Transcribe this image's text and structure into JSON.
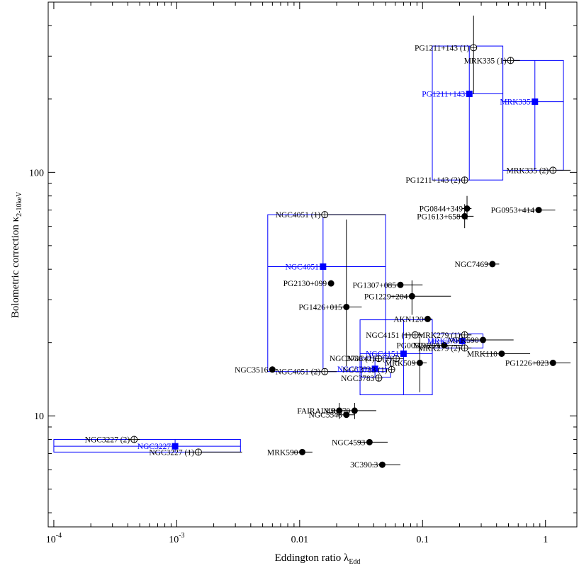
{
  "chart_data": {
    "type": "scatter",
    "xlabel": "Eddington ratio λ",
    "xlabel_sub": "Edd",
    "ylabel": "Bolometric correction κ",
    "ylabel_sub": "2-10keV",
    "x_scale": "log",
    "y_scale": "log",
    "xlim": [
      9e-05,
      1.8
    ],
    "ylim": [
      3.5,
      500
    ],
    "grid": false,
    "x_ticks": [
      {
        "value": 0.0001,
        "base": "10",
        "exp": "-4"
      },
      {
        "value": 0.001,
        "base": "10",
        "exp": "-3"
      },
      {
        "value": 0.01,
        "text": "0.01"
      },
      {
        "value": 0.1,
        "text": "0.1"
      },
      {
        "value": 1,
        "text": "1"
      }
    ],
    "y_ticks": [
      {
        "value": 10,
        "text": "10"
      },
      {
        "value": 100,
        "text": "100"
      }
    ],
    "series": [
      {
        "marker": "filled-circle",
        "points": [
          {
            "label": "PG0844+349",
            "x": 0.23,
            "y": 71,
            "xerr": [
              0.21,
              0.25
            ],
            "yerr": [
              64,
              80
            ]
          },
          {
            "label": "PG0953+414",
            "x": 0.88,
            "y": 70,
            "xerr": [
              0.6,
              1.2
            ]
          },
          {
            "label": "PG1613+658",
            "x": 0.22,
            "y": 66,
            "xerr": [
              0.19,
              0.26
            ],
            "yerr": [
              59,
              74
            ]
          },
          {
            "label": "NGC7469",
            "x": 0.37,
            "y": 42,
            "xerr": [
              0.33,
              0.42
            ]
          },
          {
            "label": "PG2130+099",
            "x": 0.018,
            "y": 35
          },
          {
            "label": "PG1307+085",
            "x": 0.066,
            "y": 34.5,
            "xerr": [
              0.05,
              0.1
            ]
          },
          {
            "label": "PG1229+204",
            "x": 0.082,
            "y": 31,
            "xerr": [
              0.055,
              0.17
            ],
            "yerr": [
              26,
              36
            ]
          },
          {
            "label": "PG1426+015",
            "x": 0.024,
            "y": 28,
            "xerr": [
              0.018,
              0.032
            ],
            "yerr": [
              16,
              64
            ]
          },
          {
            "label": "AKN120",
            "x": 0.11,
            "y": 25,
            "xerr": [
              0.1,
              0.12
            ]
          },
          {
            "label": "MRK79",
            "x": 0.15,
            "y": 19.5,
            "xerr": [
              0.12,
              0.19
            ]
          },
          {
            "label": "PG0052+251",
            "x": 0.15,
            "y": 19.5,
            "xerr": [
              0.11,
              0.21
            ]
          },
          {
            "label": "MRK590",
            "x": 0.31,
            "y": 20.5,
            "xerr": [
              0.2,
              0.55
            ]
          },
          {
            "label": "MRK110",
            "x": 0.44,
            "y": 18,
            "xerr": [
              0.3,
              0.75
            ]
          },
          {
            "label": "PG1226+023",
            "x": 1.15,
            "y": 16.5,
            "xerr": [
              0.8,
              1.6
            ]
          },
          {
            "label": "MRK509",
            "x": 0.095,
            "y": 16.5,
            "xerr": [
              0.082,
              0.108
            ],
            "yerr": [
              12.5,
              21
            ]
          },
          {
            "label": "NGC3516",
            "x": 0.006,
            "y": 15.5
          },
          {
            "label": "FAIRALL9",
            "x": 0.021,
            "y": 10.5,
            "xerr": [
              0.018,
              0.024
            ],
            "yerr": [
              9.7,
              11.3
            ]
          },
          {
            "label": "NGC5548",
            "x": 0.024,
            "y": 10.1,
            "xerr": [
              0.02,
              0.028
            ]
          },
          {
            "label": "MRK79",
            "x": 0.028,
            "y": 10.5,
            "xerr": [
              0.022,
              0.042
            ],
            "yerr": [
              9.7,
              11.3
            ]
          },
          {
            "label": "NGC4593",
            "x": 0.037,
            "y": 7.8,
            "xerr": [
              0.03,
              0.052
            ]
          },
          {
            "label": "MRK590",
            "x": 0.0105,
            "y": 7.1,
            "xerr": [
              0.0087,
              0.0127
            ]
          },
          {
            "label": "3C390.3",
            "x": 0.047,
            "y": 6.3,
            "xerr": [
              0.038,
              0.066
            ]
          }
        ]
      },
      {
        "marker": "open-circle",
        "points": [
          {
            "label": "PG1211+143 (1)",
            "x": 0.26,
            "y": 325,
            "yerr": [
              210,
              440
            ]
          },
          {
            "label": "MRK335 (1)",
            "x": 0.52,
            "y": 288,
            "xerr": [
              0.45,
              0.62
            ]
          },
          {
            "label": "PG1211+143 (2)",
            "x": 0.22,
            "y": 93
          },
          {
            "label": "MRK335 (2)",
            "x": 1.15,
            "y": 102,
            "xerr": [
              0.9,
              1.6
            ]
          },
          {
            "label": "NGC4051 (1)",
            "x": 0.016,
            "y": 67,
            "xerr": [
              0.013,
              0.05
            ]
          },
          {
            "label": "NGC4151 (1)",
            "x": 0.087,
            "y": 21.5,
            "xerr": [
              0.07,
              0.1
            ]
          },
          {
            "label": "MRK279 (1)",
            "x": 0.22,
            "y": 21.5,
            "xerr": [
              0.2,
              0.25
            ]
          },
          {
            "label": "MRK279 (2)",
            "x": 0.22,
            "y": 19,
            "xerr": [
              0.19,
              0.25
            ]
          },
          {
            "label": "NGC4151 (2)",
            "x": 0.061,
            "y": 17.2,
            "xerr": [
              0.05,
              0.07
            ]
          },
          {
            "label": "NGC3783 (1)",
            "x": 0.056,
            "y": 15.5
          },
          {
            "label": "NGC3783 (2)",
            "x": 0.044,
            "y": 17.2
          },
          {
            "label": "NGC3783",
            "x": 0.044,
            "y": 14.3
          },
          {
            "label": "NGC4051 (2)",
            "x": 0.016,
            "y": 15.2,
            "xerr": [
              0.012,
              0.02
            ]
          },
          {
            "label": "NGC3227 (2)",
            "x": 0.00045,
            "y": 8.0,
            "xerr": [
              0.0004,
              0.0005
            ]
          },
          {
            "label": "NGC3227 (1)",
            "x": 0.0015,
            "y": 7.1,
            "xerr": [
              0.0012,
              0.0034
            ]
          }
        ]
      },
      {
        "marker": "blue-square",
        "color": "#0000ff",
        "points": [
          {
            "label": "PG1211+143",
            "x": 0.24,
            "y": 210,
            "box": {
              "x": [
                0.12,
                0.45
              ],
              "y": [
                93,
                330
              ]
            }
          },
          {
            "label": "MRK335",
            "x": 0.82,
            "y": 195,
            "box": {
              "x": [
                0.45,
                1.4
              ],
              "y": [
                102,
                288
              ]
            }
          },
          {
            "label": "NGC4051",
            "x": 0.0155,
            "y": 41,
            "box": {
              "x": [
                0.0055,
                0.05
              ],
              "y": [
                15.2,
                67
              ]
            }
          },
          {
            "label": "NGC4151",
            "x": 0.07,
            "y": 18,
            "box": {
              "x": [
                0.031,
                0.12
              ],
              "y": [
                12.2,
                24.8
              ]
            }
          },
          {
            "label": "NGC3783",
            "x": 0.041,
            "y": 15.6,
            "box": {
              "x": [
                0.032,
                0.055
              ],
              "y": [
                14.4,
                17.3
              ]
            }
          },
          {
            "label": "MRK279",
            "x": 0.21,
            "y": 20.3,
            "box": {
              "x": [
                0.12,
                0.31
              ],
              "y": [
                19,
                21.7
              ]
            }
          },
          {
            "label": "NGC3227",
            "x": 0.00097,
            "y": 7.5,
            "box": {
              "x": [
                0.0001,
                0.0033
              ],
              "y": [
                7.1,
                8.0
              ]
            }
          }
        ]
      }
    ]
  },
  "colors": {
    "axis": "#000000",
    "filled": "#000000",
    "highlight": "#0000ff"
  }
}
